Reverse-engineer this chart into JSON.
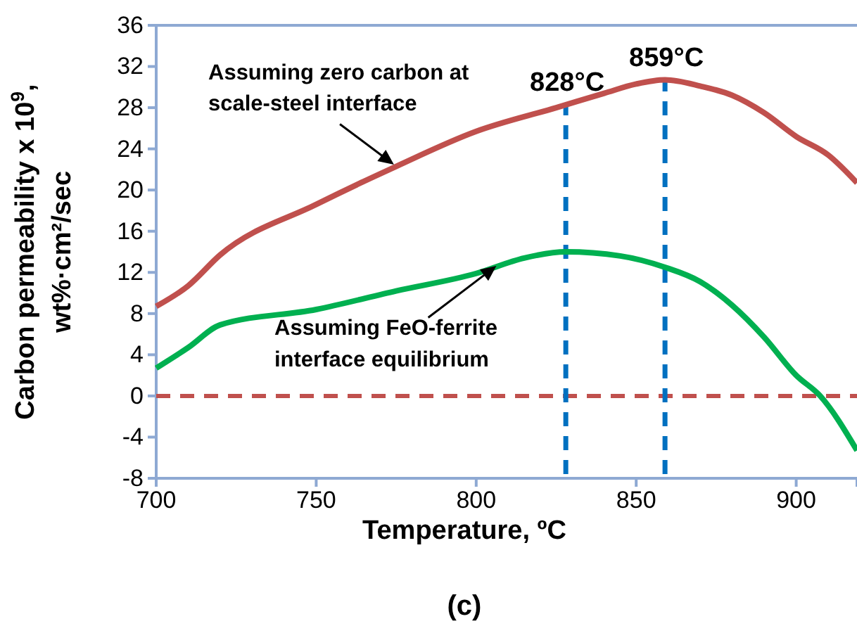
{
  "chart_data": {
    "type": "line",
    "xlabel": "Temperature, ºC",
    "ylabel": "Carbon permeability x 10$^{9}$,\nwt%·cm²/sec",
    "xlim": [
      700,
      919
    ],
    "xticks": [
      700,
      750,
      800,
      850,
      900
    ],
    "ylim": [
      -8,
      36
    ],
    "yticks": [
      -8,
      -4,
      0,
      4,
      8,
      12,
      16,
      20,
      24,
      28,
      32,
      36
    ],
    "grid": false,
    "marker": "none",
    "line_style": "solid",
    "series": [
      {
        "color": "#c0504d",
        "x": [
          700,
          710,
          720,
          750,
          775,
          800,
          825,
          840,
          850,
          859,
          870,
          880,
          890,
          900,
          910,
          919
        ],
        "values": [
          8.7,
          10.7,
          13.7,
          18.6,
          22.3,
          25.7,
          28.0,
          29.4,
          30.3,
          30.7,
          30.1,
          29.2,
          27.5,
          25.2,
          23.4,
          20.7
        ]
      },
      {
        "color": "#00b050",
        "x": [
          700,
          710,
          720,
          750,
          775,
          800,
          815,
          828,
          845,
          859,
          870,
          880,
          890,
          900,
          907.5,
          919
        ],
        "values": [
          2.7,
          4.7,
          6.9,
          8.4,
          10.2,
          11.9,
          13.4,
          14,
          13.6,
          12.5,
          11.1,
          8.8,
          5.7,
          2,
          0,
          -5.3
        ]
      }
    ],
    "ref_lines": [
      {
        "axis": "y",
        "value": 0,
        "color": "#c0504d",
        "line_style": "dashed"
      },
      {
        "axis": "x",
        "value": 828,
        "label": "828°C",
        "color": "#0070c0",
        "line_style": "dashed"
      },
      {
        "axis": "x",
        "value": 859,
        "label": "859°C",
        "color": "#0070c0",
        "line_style": "dashed"
      }
    ],
    "annotations": [
      {
        "text": "Assuming zero carbon at\nscale-steel interface",
        "x": 775,
        "y": 22.3
      },
      {
        "text": "Assuming FeO-ferrite\ninterface equilibrium",
        "x": 807,
        "y": 12.8
      },
      "(c)"
    ]
  }
}
